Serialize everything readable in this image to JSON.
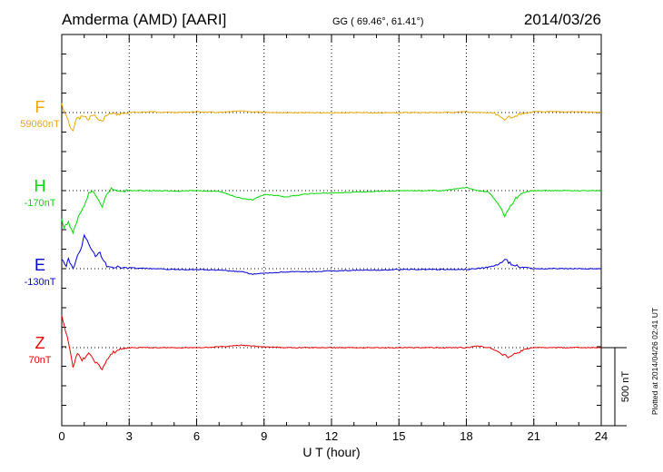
{
  "chart_data": {
    "type": "line",
    "title_station": "Amderma (AMD)  [AARI]",
    "coords": "GG ( 69.46°,  61.41°)",
    "date": "2014/03/26",
    "xlabel": "U T (hour)",
    "xlim": [
      0,
      24
    ],
    "x_ticks": [
      "0",
      "3",
      "6",
      "9",
      "12",
      "15",
      "18",
      "21",
      "24"
    ],
    "scale_label": "500 nT",
    "plotted_note": "Plotted at 2014/04/26 02:41 UT",
    "grid": "vertical dotted every 3 hours",
    "series": [
      {
        "name": "F",
        "baseline_label": "59060nT",
        "color": "#f0a800",
        "x": [
          0,
          0.1,
          0.2,
          0.3,
          0.4,
          0.5,
          0.6,
          0.7,
          0.8,
          0.9,
          1.0,
          1.2,
          1.4,
          1.6,
          1.8,
          1.9,
          2.0,
          2.2,
          2.5,
          3.0,
          4,
          5,
          6,
          7,
          7.5,
          8,
          8.5,
          9,
          10,
          11,
          12,
          13,
          14,
          15,
          16,
          17,
          18,
          18.4,
          18.8,
          19.2,
          19.5,
          19.7,
          19.9,
          20.2,
          20.6,
          21,
          22,
          23,
          24
        ],
        "nT": [
          60,
          0,
          -20,
          -60,
          -100,
          -120,
          -60,
          -30,
          -40,
          -20,
          -30,
          -40,
          -10,
          -40,
          -60,
          -30,
          -20,
          -5,
          -10,
          0,
          5,
          0,
          5,
          0,
          5,
          10,
          5,
          0,
          0,
          0,
          -3,
          0,
          -3,
          0,
          0,
          0,
          5,
          0,
          0,
          -5,
          -30,
          -40,
          -30,
          -20,
          -5,
          5,
          5,
          5,
          0
        ]
      },
      {
        "name": "H",
        "baseline_label": "-170nT",
        "color": "#00dd00",
        "x": [
          0,
          0.1,
          0.3,
          0.5,
          0.6,
          0.8,
          1.0,
          1.2,
          1.4,
          1.6,
          1.8,
          2.0,
          2.2,
          2.5,
          3,
          4,
          5,
          6,
          7,
          8,
          8.5,
          9,
          10,
          11,
          12,
          13,
          14,
          15,
          16,
          17,
          18,
          18.5,
          19,
          19.5,
          19.7,
          19.9,
          20.2,
          20.6,
          21,
          22,
          23,
          24
        ],
        "nT": [
          -190,
          -240,
          -200,
          -280,
          -220,
          -150,
          -100,
          -20,
          0,
          -60,
          -110,
          -20,
          10,
          0,
          0,
          0,
          -3,
          0,
          -5,
          -50,
          -60,
          -25,
          -40,
          -20,
          -15,
          -10,
          -5,
          0,
          0,
          0,
          20,
          0,
          -10,
          -100,
          -170,
          -110,
          -50,
          -10,
          0,
          0,
          0,
          0
        ]
      },
      {
        "name": "E",
        "baseline_label": "-130nT",
        "color": "#0000dd",
        "x": [
          0,
          0.2,
          0.3,
          0.5,
          0.7,
          0.9,
          1.0,
          1.2,
          1.5,
          1.7,
          2.0,
          2.3,
          3,
          4,
          5,
          6,
          7,
          8,
          8.5,
          9,
          10,
          11,
          12,
          13,
          14,
          15,
          16,
          17,
          18,
          19,
          19.5,
          19.7,
          20,
          20.5,
          21,
          22,
          23,
          24
        ],
        "nT": [
          60,
          20,
          60,
          0,
          80,
          150,
          210,
          160,
          80,
          100,
          20,
          10,
          5,
          0,
          -5,
          -5,
          -10,
          -20,
          -35,
          -30,
          -20,
          -20,
          -15,
          -10,
          -10,
          -5,
          -5,
          -5,
          -5,
          10,
          30,
          60,
          30,
          10,
          0,
          0,
          0,
          0
        ]
      },
      {
        "name": "Z",
        "baseline_label": "70nT",
        "color": "#ee0000",
        "x": [
          0,
          0.1,
          0.3,
          0.5,
          0.7,
          0.9,
          1.2,
          1.5,
          1.8,
          2.0,
          2.3,
          2.6,
          3,
          4,
          5,
          6,
          7,
          8,
          9,
          10,
          11,
          12,
          13,
          14,
          15,
          16,
          17,
          18,
          18.5,
          19,
          19.5,
          19.8,
          20.2,
          20.6,
          21,
          22,
          23,
          24
        ],
        "nT": [
          200,
          140,
          40,
          -120,
          -40,
          -80,
          -40,
          -90,
          -140,
          -80,
          -30,
          -10,
          0,
          0,
          0,
          0,
          5,
          15,
          5,
          0,
          0,
          0,
          0,
          0,
          0,
          0,
          0,
          0,
          10,
          0,
          -30,
          -60,
          -40,
          -10,
          0,
          0,
          0,
          0
        ]
      }
    ]
  }
}
